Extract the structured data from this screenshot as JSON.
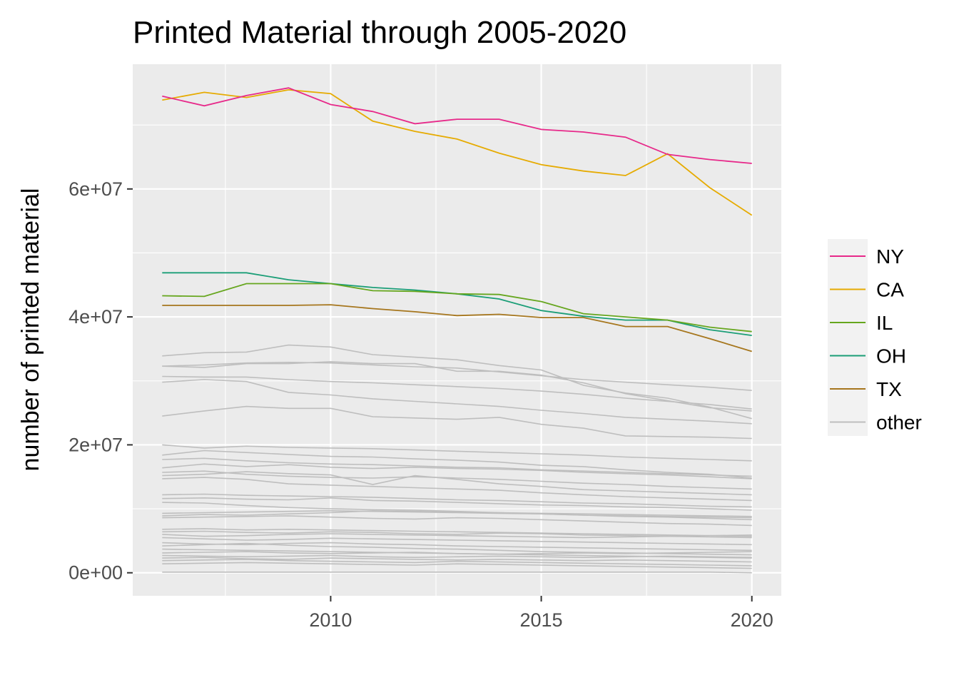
{
  "chart_data": {
    "type": "line",
    "title": "Printed Material through 2005-2020",
    "xlabel": "",
    "ylabel": "number of printed material",
    "xlim": [
      2005.3,
      2020.7
    ],
    "ylim": [
      -3600000,
      79500000
    ],
    "x_ticks": [
      2010,
      2015,
      2020
    ],
    "x_tick_labels": [
      "2010",
      "2015",
      "2020"
    ],
    "y_ticks": [
      0,
      20000000,
      40000000,
      60000000
    ],
    "y_tick_labels": [
      "0e+00",
      "2e+07",
      "4e+07",
      "6e+07"
    ],
    "grid": true,
    "legend_position": "right",
    "x": [
      2006,
      2007,
      2008,
      2009,
      2010,
      2011,
      2012,
      2013,
      2014,
      2015,
      2016,
      2017,
      2018,
      2019,
      2020
    ],
    "series": [
      {
        "name": "NY",
        "color": "#E7298A",
        "values": [
          74500000,
          73000000,
          74600000,
          75800000,
          73200000,
          72100000,
          70200000,
          70900000,
          70900000,
          69300000,
          68900000,
          68100000,
          65400000,
          64600000,
          64000000
        ]
      },
      {
        "name": "CA",
        "color": "#E6AB02",
        "values": [
          73900000,
          75100000,
          74300000,
          75500000,
          74900000,
          70600000,
          69000000,
          67800000,
          65600000,
          63800000,
          62800000,
          62100000,
          65500000,
          60200000,
          55900000
        ]
      },
      {
        "name": "IL",
        "color": "#66A61E",
        "values": [
          43300000,
          43200000,
          45200000,
          45200000,
          45200000,
          44100000,
          44000000,
          43600000,
          43500000,
          42400000,
          40500000,
          40000000,
          39500000,
          38400000,
          37700000
        ]
      },
      {
        "name": "OH",
        "color": "#1B9E77",
        "values": [
          46900000,
          46900000,
          46900000,
          45800000,
          45200000,
          44600000,
          44200000,
          43600000,
          42800000,
          41000000,
          40100000,
          39500000,
          39500000,
          38000000,
          37100000
        ]
      },
      {
        "name": "TX",
        "color": "#A6761D",
        "values": [
          41800000,
          41800000,
          41800000,
          41800000,
          41900000,
          41300000,
          40800000,
          40200000,
          40400000,
          39900000,
          39900000,
          38500000,
          38500000,
          36600000,
          34600000
        ]
      },
      {
        "name": "other",
        "color": "#BEBEBE",
        "values": null
      }
    ],
    "other_series_values": [
      [
        33900000,
        34400000,
        34500000,
        35600000,
        35300000,
        34100000,
        33700000,
        33300000,
        32400000,
        31700000,
        29300000,
        28100000,
        27300000,
        25900000,
        24100000
      ],
      [
        32300000,
        32100000,
        32700000,
        32700000,
        33000000,
        32700000,
        32700000,
        31500000,
        31500000,
        30900000,
        29700000,
        28000000,
        26900000,
        25800000,
        25300000
      ],
      [
        32300000,
        32500000,
        32800000,
        32900000,
        32800000,
        32500000,
        32200000,
        32000000,
        31400000,
        30800000,
        30200000,
        29800000,
        29400000,
        29000000,
        28500000
      ],
      [
        30700000,
        30600000,
        30600000,
        30200000,
        29900000,
        29700000,
        29400000,
        29100000,
        28800000,
        28400000,
        27900000,
        27300000,
        26800000,
        26300000,
        25600000
      ],
      [
        29800000,
        30200000,
        29900000,
        28200000,
        27800000,
        27200000,
        26800000,
        26400000,
        26000000,
        25400000,
        24900000,
        24300000,
        24000000,
        23700000,
        23300000
      ],
      [
        24500000,
        25300000,
        26000000,
        25700000,
        25700000,
        24400000,
        24200000,
        24000000,
        24300000,
        23200000,
        22600000,
        21400000,
        21300000,
        21200000,
        21000000
      ],
      [
        20000000,
        19500000,
        19800000,
        19600000,
        19500000,
        19400000,
        19200000,
        19000000,
        18800000,
        18600000,
        18400000,
        18100000,
        17900000,
        17700000,
        17500000
      ],
      [
        18400000,
        19100000,
        18800000,
        18500000,
        18200000,
        18100000,
        17800000,
        17600000,
        17300000,
        16800000,
        16600000,
        16100000,
        15700000,
        15400000,
        14800000
      ],
      [
        17700000,
        17900000,
        17500000,
        17200000,
        17000000,
        16900000,
        16700000,
        16500000,
        16400000,
        16100000,
        15900000,
        15700000,
        15500000,
        15300000,
        15100000
      ],
      [
        16400000,
        17000000,
        16600000,
        16900000,
        16500000,
        16300000,
        16500000,
        16300000,
        16200000,
        16000000,
        15700000,
        15500000,
        15300000,
        15000000,
        14700000
      ],
      [
        15700000,
        15900000,
        15400000,
        15100000,
        14900000,
        14800000,
        15000000,
        14800000,
        14600000,
        14300000,
        14000000,
        13800000,
        13500000,
        13300000,
        13100000
      ],
      [
        15200000,
        15400000,
        15800000,
        15500000,
        15300000,
        13800000,
        15200000,
        14600000,
        13900000,
        13500000,
        13000000,
        12800000,
        12600000,
        12400000,
        12200000
      ],
      [
        14700000,
        14900000,
        14600000,
        13900000,
        13700000,
        13500000,
        13300000,
        13100000,
        12900000,
        12500000,
        12200000,
        11900000,
        11700000,
        11500000,
        11300000
      ],
      [
        12200000,
        12300000,
        12100000,
        12000000,
        11900000,
        11800000,
        11600000,
        11400000,
        11300000,
        11100000,
        10900000,
        10800000,
        10600000,
        10400000,
        10300000
      ],
      [
        11600000,
        11700000,
        11500000,
        11400000,
        11700000,
        11300000,
        11200000,
        11000000,
        10800000,
        10600000,
        10500000,
        10300000,
        10200000,
        10000000,
        9800000
      ],
      [
        11000000,
        10900000,
        10500000,
        10200000,
        10000000,
        9900000,
        9800000,
        9600000,
        9400000,
        9200000,
        9000000,
        8800000,
        8700000,
        8500000,
        8300000
      ],
      [
        9300000,
        9400000,
        9500000,
        9600000,
        9700000,
        9600000,
        9500000,
        9400000,
        9300000,
        9200000,
        9000000,
        8900000,
        8800000,
        8700000,
        8600000
      ],
      [
        8900000,
        9100000,
        9000000,
        9200000,
        9400000,
        9700000,
        9600000,
        9500000,
        9400000,
        9300000,
        9200000,
        9100000,
        9000000,
        8900000,
        8800000
      ],
      [
        8600000,
        8700000,
        8800000,
        8900000,
        8700000,
        8500000,
        8400000,
        8600000,
        8500000,
        8300000,
        8100000,
        7900000,
        7700000,
        7600000,
        7400000
      ],
      [
        6800000,
        6900000,
        6700000,
        6800000,
        6700000,
        6600000,
        6500000,
        6400000,
        6300000,
        6200000,
        6100000,
        6000000,
        5900000,
        5800000,
        5700000
      ],
      [
        6400000,
        6500000,
        6300000,
        6200000,
        6400000,
        6300000,
        6100000,
        6000000,
        6200000,
        6100000,
        5900000,
        5800000,
        5700000,
        5600000,
        5500000
      ],
      [
        6000000,
        5700000,
        5800000,
        6000000,
        6100000,
        6000000,
        5900000,
        5800000,
        5700000,
        5600000,
        5500000,
        5600000,
        5700000,
        5800000,
        5900000
      ],
      [
        5500000,
        5300000,
        5100000,
        5200000,
        5400000,
        5300000,
        5200000,
        5100000,
        5000000,
        4900000,
        4800000,
        4700000,
        4600000,
        4500000,
        4400000
      ],
      [
        4700000,
        4500000,
        4400000,
        4600000,
        4700000,
        4500000,
        4400000,
        4200000,
        4100000,
        4000000,
        3900000,
        3800000,
        3700000,
        3600000,
        3500000
      ],
      [
        4200000,
        4400000,
        4600000,
        4300000,
        4100000,
        4000000,
        3800000,
        3700000,
        3500000,
        3300000,
        3200000,
        3100000,
        3000000,
        2900000,
        2800000
      ],
      [
        3700000,
        3600000,
        3500000,
        3400000,
        3300000,
        3200000,
        3100000,
        3000000,
        2900000,
        2800000,
        2700000,
        2600000,
        2500000,
        2400000,
        2300000
      ],
      [
        3100000,
        3200000,
        3300000,
        3100000,
        3000000,
        3100000,
        3200000,
        3000000,
        2900000,
        3000000,
        3100000,
        3000000,
        3100000,
        3200000,
        3300000
      ],
      [
        2700000,
        2600000,
        2500000,
        2600000,
        2700000,
        2500000,
        2400000,
        2500000,
        2600000,
        2500000,
        2400000,
        2500000,
        2600000,
        2500000,
        2400000
      ],
      [
        2300000,
        2400000,
        2200000,
        2100000,
        2300000,
        2200000,
        2100000,
        2000000,
        2100000,
        2000000,
        1900000,
        2000000,
        1900000,
        1800000,
        1700000
      ],
      [
        1900000,
        2000000,
        2100000,
        1900000,
        1800000,
        1700000,
        1600000,
        1800000,
        1700000,
        1600000,
        1500000,
        1400000,
        1300000,
        1200000,
        1100000
      ],
      [
        1400000,
        1500000,
        1600000,
        1500000,
        1400000,
        1300000,
        1200000,
        1400000,
        1300000,
        1200000,
        1100000,
        1000000,
        900000,
        800000,
        700000
      ],
      [
        100000,
        100000,
        100000,
        100000,
        100000,
        100000,
        100000,
        100000,
        100000,
        100000,
        100000,
        100000,
        100000,
        100000,
        0
      ]
    ]
  }
}
